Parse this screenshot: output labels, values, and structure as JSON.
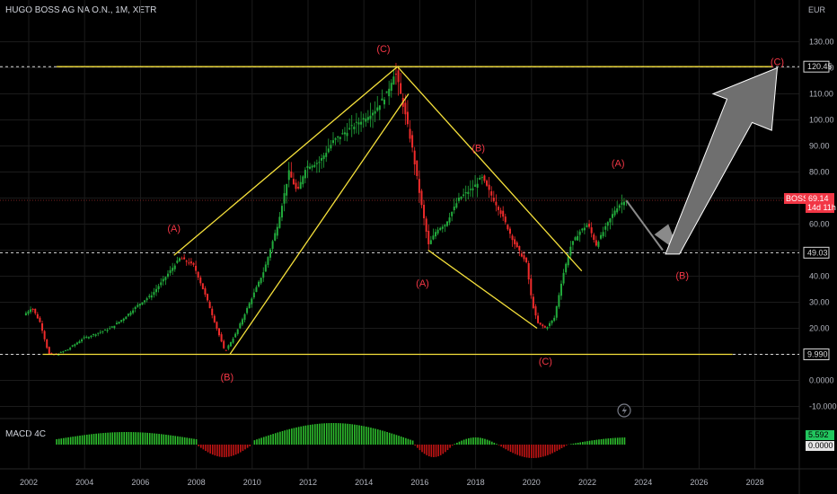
{
  "header": {
    "title": "HUGO BOSS AG NA O.N., 1M, XETR",
    "currency": "EUR"
  },
  "macd": {
    "label": "MACD 4C",
    "value_pos": "5.592",
    "value_zero": "0.0000"
  },
  "colors": {
    "background": "#000000",
    "bull": "#26a69a",
    "bull_bright": "#22ab3c",
    "bear": "#ef2b2b",
    "pattern": "#f5e03b",
    "wave_label": "#f23645",
    "arrow": "#6f6f6f",
    "grid": "#1b1b1b",
    "price_tag": "#f23645",
    "macd_pos": "#2dbd2d",
    "macd_neg": "#c21414"
  },
  "chart_data": {
    "type": "line",
    "title": "HUGO BOSS AG NA O.N., 1M, XETR",
    "x_axis": {
      "ticks": [
        "2002",
        "2004",
        "2006",
        "2008",
        "2010",
        "2012",
        "2014",
        "2016",
        "2018",
        "2020",
        "2022",
        "2024",
        "2026",
        "2028"
      ],
      "range": [
        2001.7,
        2029.6
      ]
    },
    "y_axis": {
      "unit": "EUR",
      "ticks": [
        "130.00",
        "120.00",
        "110.00",
        "100.00",
        "90.00",
        "80.00",
        "70.00",
        "60.00",
        "50.00",
        "40.00",
        "30.00",
        "20.00",
        "10.00",
        "0.0000",
        "-10.000"
      ],
      "range": [
        -13,
        135
      ]
    },
    "price_path": [
      [
        2001.9,
        25
      ],
      [
        2002.2,
        28
      ],
      [
        2002.5,
        22
      ],
      [
        2002.8,
        10
      ],
      [
        2003.1,
        10
      ],
      [
        2003.5,
        12
      ],
      [
        2004.0,
        16
      ],
      [
        2004.5,
        18
      ],
      [
        2005.0,
        20
      ],
      [
        2005.5,
        24
      ],
      [
        2006.0,
        29
      ],
      [
        2006.5,
        33
      ],
      [
        2007.0,
        40
      ],
      [
        2007.5,
        47
      ],
      [
        2008.0,
        44
      ],
      [
        2008.5,
        30
      ],
      [
        2009.1,
        11
      ],
      [
        2009.5,
        18
      ],
      [
        2010.0,
        30
      ],
      [
        2010.5,
        42
      ],
      [
        2011.0,
        60
      ],
      [
        2011.4,
        80
      ],
      [
        2011.7,
        72
      ],
      [
        2012.0,
        82
      ],
      [
        2012.5,
        84
      ],
      [
        2013.0,
        92
      ],
      [
        2013.5,
        96
      ],
      [
        2014.0,
        100
      ],
      [
        2014.5,
        104
      ],
      [
        2014.9,
        110
      ],
      [
        2015.2,
        119
      ],
      [
        2015.5,
        105
      ],
      [
        2015.8,
        90
      ],
      [
        2016.1,
        70
      ],
      [
        2016.4,
        52
      ],
      [
        2016.7,
        58
      ],
      [
        2017.0,
        60
      ],
      [
        2017.5,
        70
      ],
      [
        2018.0,
        74
      ],
      [
        2018.3,
        78
      ],
      [
        2018.6,
        72
      ],
      [
        2019.0,
        64
      ],
      [
        2019.5,
        52
      ],
      [
        2019.9,
        45
      ],
      [
        2020.1,
        30
      ],
      [
        2020.3,
        22
      ],
      [
        2020.6,
        20
      ],
      [
        2020.9,
        24
      ],
      [
        2021.2,
        40
      ],
      [
        2021.5,
        52
      ],
      [
        2021.8,
        57
      ],
      [
        2022.1,
        60
      ],
      [
        2022.4,
        52
      ],
      [
        2022.8,
        60
      ],
      [
        2023.1,
        66
      ],
      [
        2023.4,
        69.14
      ]
    ],
    "annotations": {
      "wave_labels": [
        {
          "text": "(A)",
          "x": 2007.2,
          "y": 57
        },
        {
          "text": "(B)",
          "x": 2009.1,
          "y": 0
        },
        {
          "text": "(C)",
          "x": 2014.7,
          "y": 126
        },
        {
          "text": "(B)",
          "x": 2018.1,
          "y": 88
        },
        {
          "text": "(A)",
          "x": 2016.1,
          "y": 36
        },
        {
          "text": "(C)",
          "x": 2020.5,
          "y": 6
        },
        {
          "text": "(A)",
          "x": 2023.1,
          "y": 82
        },
        {
          "text": "(B)",
          "x": 2025.4,
          "y": 39
        },
        {
          "text": "(C)",
          "x": 2028.8,
          "y": 121
        }
      ],
      "horizontal_levels": [
        {
          "label": "120.45",
          "value": 120.45
        },
        {
          "label": "49.03",
          "value": 49.03
        },
        {
          "label": "9.990",
          "value": 9.99
        }
      ],
      "last_price": {
        "symbol": "BOSS",
        "value": "69.14",
        "countdown": "14d 11h",
        "numeric": 69.14
      }
    }
  }
}
